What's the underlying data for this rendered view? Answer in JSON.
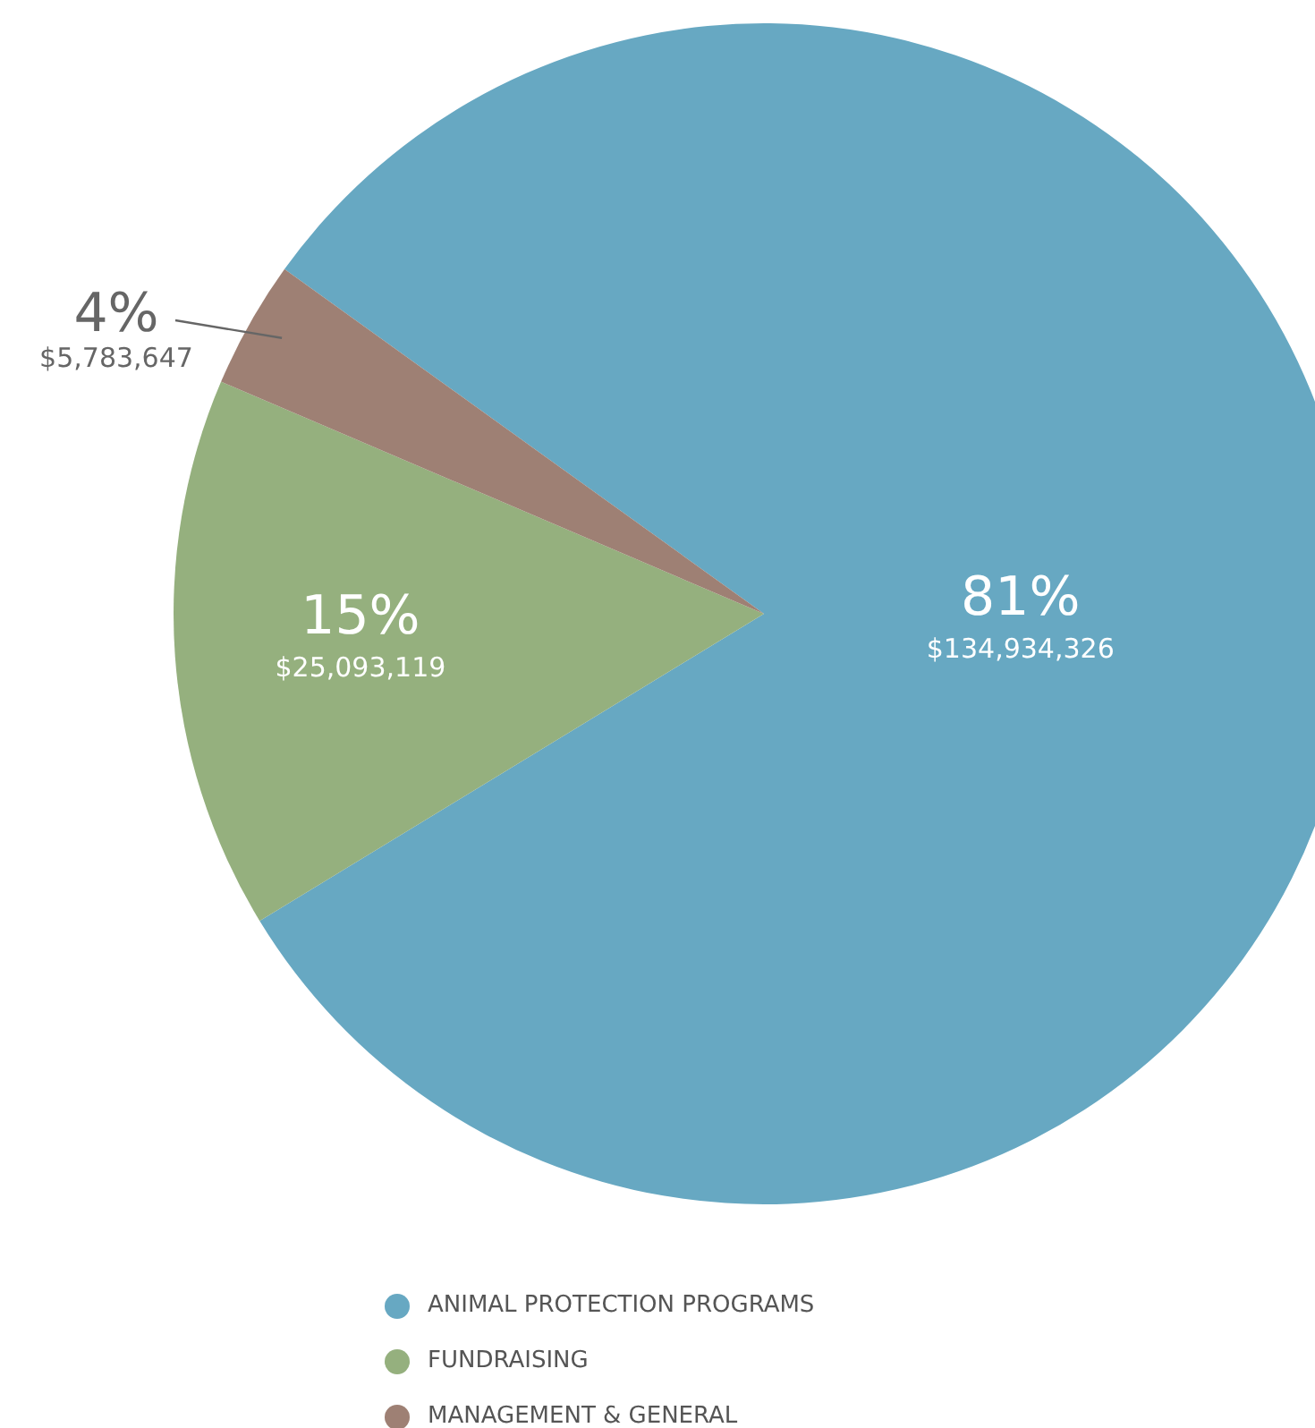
{
  "chart_data": {
    "type": "pie",
    "categories": [
      "ANIMAL PROTECTION PROGRAMS",
      "FUNDRAISING",
      "MANAGEMENT & GENERAL"
    ],
    "values": [
      134934326,
      25093119,
      5783647
    ],
    "colors": [
      "#67a8c2",
      "#95b07e",
      "#9e8074"
    ],
    "value_labels": [
      "81%\n$134,934,326",
      "15%\n$25,093,119",
      "4%\n$5,783,647"
    ],
    "legend": "bottom"
  }
}
